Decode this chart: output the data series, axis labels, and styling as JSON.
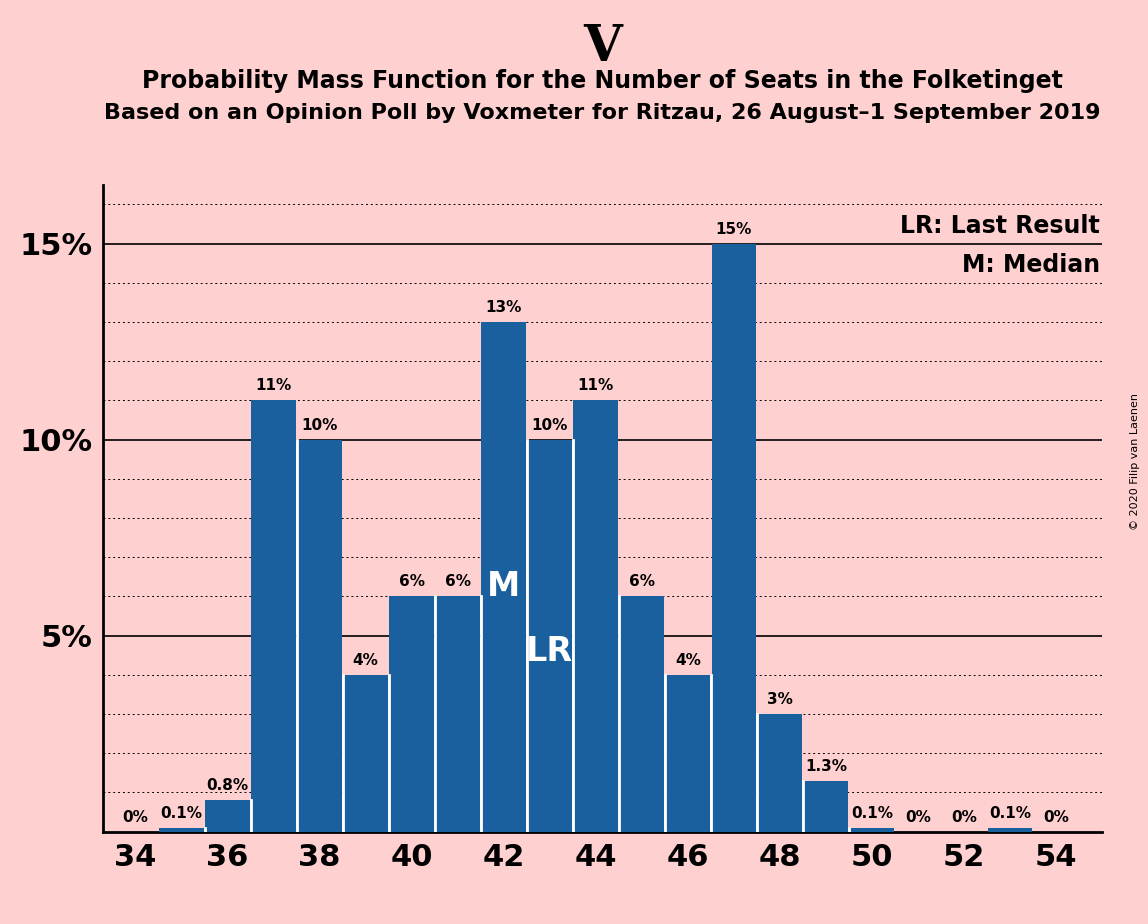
{
  "title_main": "V",
  "title_line1": "Probability Mass Function for the Number of Seats in the Folketinget",
  "title_line2": "Based on an Opinion Poll by Voxmeter for Ritzau, 26 August–1 September 2019",
  "copyright": "© 2020 Filip van Laenen",
  "bar_color": "#1a5f9e",
  "background_color": "#ffd0d0",
  "seats": [
    34,
    35,
    36,
    37,
    38,
    39,
    40,
    41,
    42,
    43,
    44,
    45,
    46,
    47,
    48,
    49,
    50,
    51,
    52,
    53,
    54
  ],
  "probabilities": [
    0.0,
    0.1,
    0.8,
    11.0,
    10.0,
    4.0,
    6.0,
    6.0,
    13.0,
    10.0,
    11.0,
    6.0,
    4.0,
    15.0,
    3.0,
    1.3,
    0.1,
    0.0,
    0.0,
    0.1,
    0.0
  ],
  "labels": [
    "0%",
    "0.1%",
    "0.8%",
    "11%",
    "10%",
    "4%",
    "6%",
    "6%",
    "13%",
    "10%",
    "11%",
    "6%",
    "4%",
    "15%",
    "3%",
    "1.3%",
    "0.1%",
    "0%",
    "0%",
    "0.1%",
    "0%"
  ],
  "median_seat": 42,
  "lr_seat": 43,
  "ylim": [
    0,
    16.5
  ],
  "solid_lines": [
    5,
    10,
    15
  ],
  "dotted_lines": [
    1,
    2,
    3,
    4,
    6,
    7,
    8,
    9,
    11,
    12,
    13,
    14,
    16
  ],
  "yticks": [
    5,
    10,
    15
  ],
  "ytick_labels": [
    "5%",
    "10%",
    "15%"
  ],
  "legend_lr": "LR: Last Result",
  "legend_m": "M: Median",
  "xlabel_ticks": [
    34,
    36,
    38,
    40,
    42,
    44,
    46,
    48,
    50,
    52,
    54
  ],
  "bar_width": 0.97
}
